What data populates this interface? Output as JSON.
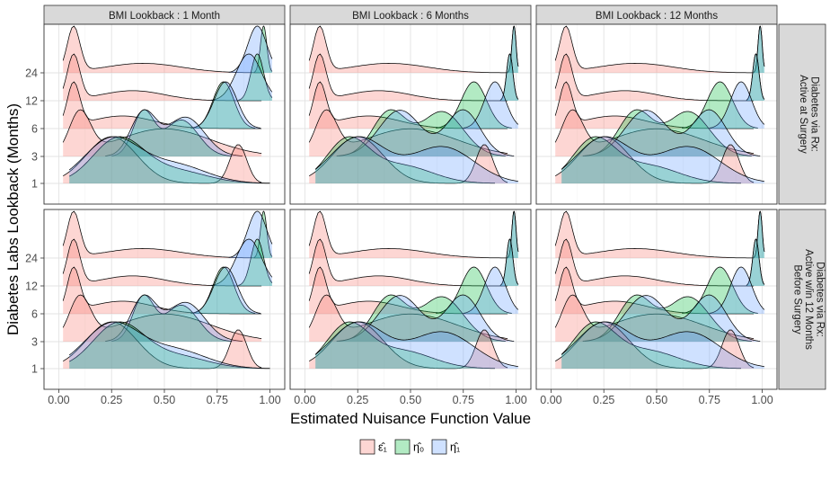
{
  "chart_data": {
    "type": "area",
    "subtype": "ridgeline-density",
    "xlabel": "Estimated Nuisance Function Value",
    "ylabel": "Diabetes Labs Lookback (Months)",
    "x_ticks": [
      0.0,
      0.25,
      0.5,
      0.75,
      1.0
    ],
    "x_tick_labels": [
      "0.00",
      "0.25",
      "0.50",
      "0.75",
      "1.00"
    ],
    "xlim": [
      -0.07,
      1.07
    ],
    "y_categories": [
      "1",
      "3",
      "6",
      "12",
      "24"
    ],
    "grid": true,
    "legend_position": "bottom",
    "colors": {
      "eps1": "#F8766D",
      "eta0": "#00BA38",
      "eta1": "#619CFF"
    },
    "legend": [
      {
        "key": "eps1",
        "label": "ε̂₁"
      },
      {
        "key": "eta0",
        "label": "η̂₀"
      },
      {
        "key": "eta1",
        "label": "η̂₁"
      }
    ],
    "col_facets": [
      "BMI Lookback : 1 Month",
      "BMI Lookback : 6 Months",
      "BMI Lookback : 12 Months"
    ],
    "row_facets": [
      {
        "lines": [
          "Diabetes via Rx:",
          "Active at Surgery"
        ]
      },
      {
        "lines": [
          "Diabetes via Rx:",
          "Active w/in 12 Months",
          "Before Surgery"
        ]
      }
    ],
    "distributions": {
      "eps1": {
        "1": [
          [
            0.25,
            0.12,
            0.6
          ],
          [
            0.85,
            0.04,
            0.5
          ]
        ],
        "3": [
          [
            0.1,
            0.05,
            0.45
          ],
          [
            0.5,
            0.22,
            0.3
          ]
        ],
        "6": [
          [
            0.07,
            0.03,
            0.85
          ],
          [
            0.3,
            0.15,
            0.25
          ]
        ],
        "12": [
          [
            0.07,
            0.03,
            0.9
          ],
          [
            0.35,
            0.15,
            0.2
          ]
        ],
        "24": [
          [
            0.07,
            0.03,
            0.95
          ],
          [
            0.4,
            0.18,
            0.2
          ]
        ]
      },
      "bmi1": {
        "eta0": {
          "1": [
            [
              0.28,
              0.12,
              0.7
            ],
            [
              0.55,
              0.15,
              0.2
            ]
          ],
          "3": [
            [
              0.4,
              0.05,
              0.6
            ],
            [
              0.58,
              0.08,
              0.5
            ]
          ],
          "6": [
            [
              0.78,
              0.05,
              1.0
            ]
          ],
          "12": [
            [
              0.94,
              0.03,
              1.0
            ]
          ],
          "24": [
            [
              0.97,
              0.015,
              1.0
            ]
          ]
        },
        "eta1": {
          "1": [
            [
              0.25,
              0.13,
              0.6
            ],
            [
              0.55,
              0.15,
              0.25
            ]
          ],
          "3": [
            [
              0.4,
              0.06,
              0.55
            ],
            [
              0.6,
              0.09,
              0.5
            ]
          ],
          "6": [
            [
              0.79,
              0.055,
              1.0
            ]
          ],
          "12": [
            [
              0.9,
              0.06,
              1.0
            ]
          ],
          "24": [
            [
              0.94,
              0.045,
              1.0
            ]
          ]
        }
      },
      "bmi6": {
        "eta0": {
          "1": [
            [
              0.2,
              0.1,
              0.7
            ],
            [
              0.45,
              0.15,
              0.3
            ]
          ],
          "3": [
            [
              0.4,
              0.08,
              0.5
            ],
            [
              0.65,
              0.1,
              0.5
            ]
          ],
          "6": [
            [
              0.8,
              0.06,
              1.0
            ]
          ],
          "12": [
            [
              0.97,
              0.015,
              1.0
            ]
          ],
          "24": [
            [
              0.99,
              0.01,
              1.0
            ]
          ]
        },
        "eta1": {
          "1": [
            [
              0.25,
              0.13,
              0.5
            ],
            [
              0.65,
              0.15,
              0.4
            ]
          ],
          "3": [
            [
              0.45,
              0.1,
              0.5
            ],
            [
              0.75,
              0.08,
              0.5
            ]
          ],
          "6": [
            [
              0.9,
              0.05,
              1.0
            ]
          ],
          "12": [
            [
              0.97,
              0.015,
              1.0
            ]
          ],
          "24": [
            [
              0.99,
              0.01,
              1.0
            ]
          ]
        }
      },
      "bmi12": {
        "eta0": {
          "1": [
            [
              0.2,
              0.1,
              0.7
            ],
            [
              0.45,
              0.15,
              0.3
            ]
          ],
          "3": [
            [
              0.4,
              0.08,
              0.5
            ],
            [
              0.65,
              0.1,
              0.5
            ]
          ],
          "6": [
            [
              0.8,
              0.06,
              1.0
            ]
          ],
          "12": [
            [
              0.97,
              0.015,
              1.0
            ]
          ],
          "24": [
            [
              0.99,
              0.01,
              1.0
            ]
          ]
        },
        "eta1": {
          "1": [
            [
              0.25,
              0.13,
              0.5
            ],
            [
              0.65,
              0.15,
              0.4
            ]
          ],
          "3": [
            [
              0.45,
              0.1,
              0.5
            ],
            [
              0.75,
              0.08,
              0.5
            ]
          ],
          "6": [
            [
              0.9,
              0.05,
              1.0
            ]
          ],
          "12": [
            [
              0.97,
              0.015,
              1.0
            ]
          ],
          "24": [
            [
              0.99,
              0.01,
              1.0
            ]
          ]
        }
      }
    }
  }
}
